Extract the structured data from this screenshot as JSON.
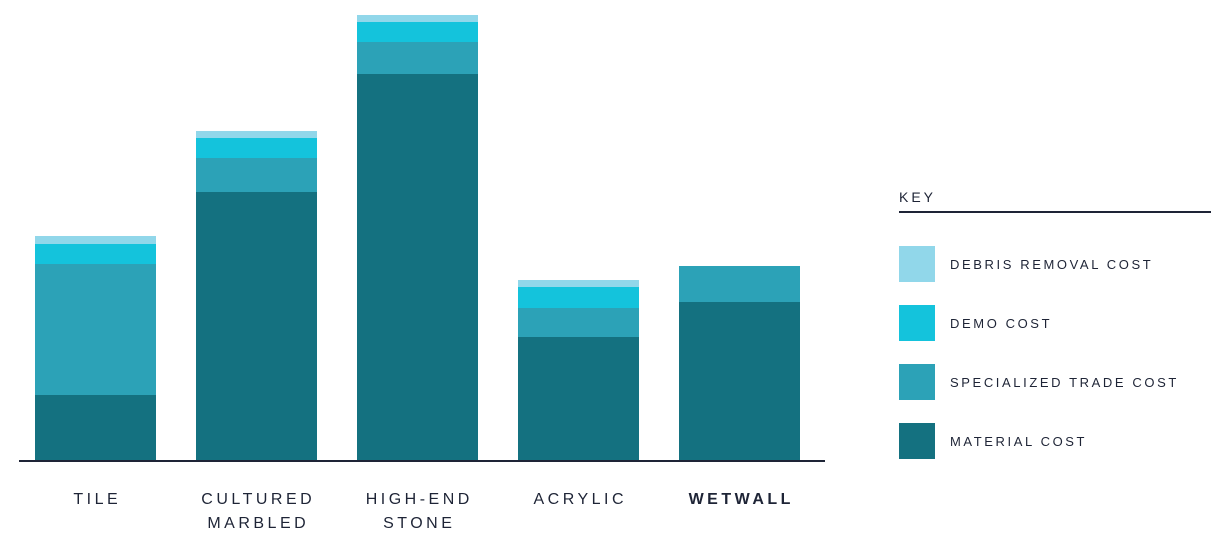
{
  "colors": {
    "material": "#147180",
    "specialized": "#2ca2b7",
    "demo": "#14c3dc",
    "debris": "#91d7ea",
    "axis": "#1e2436",
    "text": "#1e2436"
  },
  "legend": {
    "title": "KEY"
  },
  "chart_data": {
    "type": "bar",
    "stacked": true,
    "categories": [
      "TILE",
      "CULTURED\nMARBLED",
      "HIGH-END\nSTONE",
      "ACRYLIC",
      "WETWALL"
    ],
    "emphasized_category": "WETWALL",
    "series": [
      {
        "name": "MATERIAL COST",
        "color": "#147180",
        "values": [
          65,
          268,
          386,
          123,
          158
        ]
      },
      {
        "name": "SPECIALIZED TRADE COST",
        "color": "#2ca2b7",
        "values": [
          131,
          34,
          32,
          29,
          36
        ]
      },
      {
        "name": "DEMO COST",
        "color": "#14c3dc",
        "values": [
          20,
          20,
          20,
          21,
          0
        ]
      },
      {
        "name": "DEBRIS REMOVAL COST",
        "color": "#91d7ea",
        "values": [
          8,
          7,
          7,
          7,
          0
        ]
      }
    ],
    "legend_order": [
      "DEBRIS REMOVAL COST",
      "DEMO COST",
      "SPECIALIZED TRADE COST",
      "MATERIAL COST"
    ],
    "ylim": [
      0,
      460
    ],
    "title": "",
    "xlabel": "",
    "ylabel": "",
    "grid": false,
    "y_axis_visible": false,
    "legend_position": "right"
  }
}
